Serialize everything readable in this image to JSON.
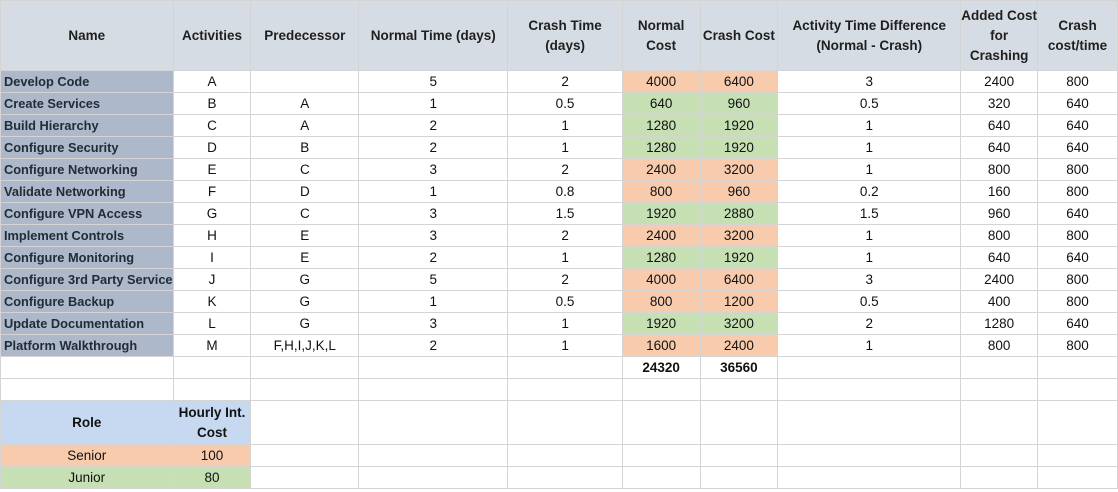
{
  "colors": {
    "header_bg": "#d6dce4",
    "name_bg": "#adb9ca",
    "senior": "#f8cbad",
    "junior": "#c6e0b4",
    "role_header_bg": "#c6d9f1"
  },
  "headers": {
    "name": "Name",
    "activities": "Activities",
    "predecessor": "Predecessor",
    "normal_time": "Normal Time (days)",
    "crash_time": "Crash Time (days)",
    "normal_cost": "Normal Cost",
    "crash_cost": "Crash Cost",
    "time_diff": "Activity Time Difference (Normal - Crash)",
    "added_cost": "Added Cost for Crashing",
    "crash_rate": "Crash cost/time"
  },
  "rows": [
    {
      "name": "Develop Code",
      "activity": "A",
      "predecessor": "",
      "normal_time": "5",
      "crash_time": "2",
      "normal_cost": "4000",
      "crash_cost": "6400",
      "time_diff": "3",
      "added_cost": "2400",
      "crash_rate": "800",
      "role": "senior"
    },
    {
      "name": "Create Services",
      "activity": "B",
      "predecessor": "A",
      "normal_time": "1",
      "crash_time": "0.5",
      "normal_cost": "640",
      "crash_cost": "960",
      "time_diff": "0.5",
      "added_cost": "320",
      "crash_rate": "640",
      "role": "junior"
    },
    {
      "name": "Build Hierarchy",
      "activity": "C",
      "predecessor": "A",
      "normal_time": "2",
      "crash_time": "1",
      "normal_cost": "1280",
      "crash_cost": "1920",
      "time_diff": "1",
      "added_cost": "640",
      "crash_rate": "640",
      "role": "junior"
    },
    {
      "name": "Configure Security",
      "activity": "D",
      "predecessor": "B",
      "normal_time": "2",
      "crash_time": "1",
      "normal_cost": "1280",
      "crash_cost": "1920",
      "time_diff": "1",
      "added_cost": "640",
      "crash_rate": "640",
      "role": "junior"
    },
    {
      "name": "Configure Networking",
      "activity": "E",
      "predecessor": "C",
      "normal_time": "3",
      "crash_time": "2",
      "normal_cost": "2400",
      "crash_cost": "3200",
      "time_diff": "1",
      "added_cost": "800",
      "crash_rate": "800",
      "role": "senior"
    },
    {
      "name": "Validate Networking",
      "activity": "F",
      "predecessor": "D",
      "normal_time": "1",
      "crash_time": "0.8",
      "normal_cost": "800",
      "crash_cost": "960",
      "time_diff": "0.2",
      "added_cost": "160",
      "crash_rate": "800",
      "role": "senior"
    },
    {
      "name": "Configure VPN Access",
      "activity": "G",
      "predecessor": "C",
      "normal_time": "3",
      "crash_time": "1.5",
      "normal_cost": "1920",
      "crash_cost": "2880",
      "time_diff": "1.5",
      "added_cost": "960",
      "crash_rate": "640",
      "role": "junior"
    },
    {
      "name": "Implement Controls",
      "activity": "H",
      "predecessor": "E",
      "normal_time": "3",
      "crash_time": "2",
      "normal_cost": "2400",
      "crash_cost": "3200",
      "time_diff": "1",
      "added_cost": "800",
      "crash_rate": "800",
      "role": "senior"
    },
    {
      "name": "Configure Monitoring",
      "activity": "I",
      "predecessor": "E",
      "normal_time": "2",
      "crash_time": "1",
      "normal_cost": "1280",
      "crash_cost": "1920",
      "time_diff": "1",
      "added_cost": "640",
      "crash_rate": "640",
      "role": "junior"
    },
    {
      "name": "Configure 3rd Party Service",
      "activity": "J",
      "predecessor": "G",
      "normal_time": "5",
      "crash_time": "2",
      "normal_cost": "4000",
      "crash_cost": "6400",
      "time_diff": "3",
      "added_cost": "2400",
      "crash_rate": "800",
      "role": "senior"
    },
    {
      "name": "Configure Backup",
      "activity": "K",
      "predecessor": "G",
      "normal_time": "1",
      "crash_time": "0.5",
      "normal_cost": "800",
      "crash_cost": "1200",
      "time_diff": "0.5",
      "added_cost": "400",
      "crash_rate": "800",
      "role": "senior"
    },
    {
      "name": "Update Documentation",
      "activity": "L",
      "predecessor": "G",
      "normal_time": "3",
      "crash_time": "1",
      "normal_cost": "1920",
      "crash_cost": "3200",
      "time_diff": "2",
      "added_cost": "1280",
      "crash_rate": "640",
      "role": "junior"
    },
    {
      "name": "Platform Walkthrough",
      "activity": "M",
      "predecessor": "F,H,I,J,K,L",
      "normal_time": "2",
      "crash_time": "1",
      "normal_cost": "1600",
      "crash_cost": "2400",
      "time_diff": "1",
      "added_cost": "800",
      "crash_rate": "800",
      "role": "senior"
    }
  ],
  "totals": {
    "normal_cost": "24320",
    "crash_cost": "36560"
  },
  "rates": {
    "header_role": "Role",
    "header_cost": "Hourly Int. Cost",
    "rows": [
      {
        "role": "Senior",
        "cost": "100",
        "key": "senior"
      },
      {
        "role": "Junior",
        "cost": "80",
        "key": "junior"
      }
    ]
  }
}
